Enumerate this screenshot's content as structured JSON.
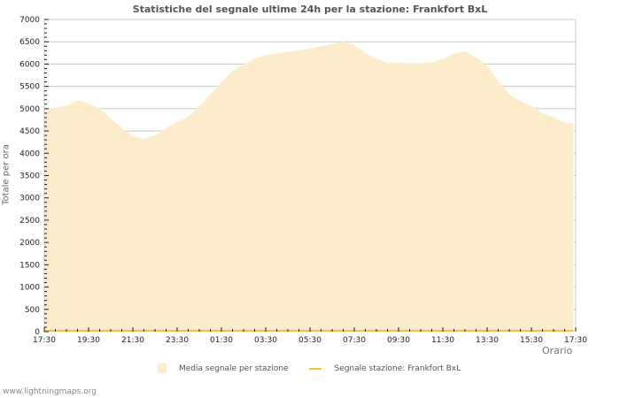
{
  "page": {
    "title": "Statistiche del segnale ultime 24h per la stazione: Frankfort BxL",
    "footer": "www.lightningmaps.org"
  },
  "colors": {
    "fill": "#fdeccb",
    "station_line": "#f5c23a",
    "grid": "#c8c8c8",
    "axis": "#cccccc"
  },
  "legend": {
    "items": [
      {
        "label": "Media segnale per stazione",
        "type": "area"
      },
      {
        "label": "Segnale stazione: Frankfort BxL",
        "type": "line"
      }
    ]
  },
  "chart_data": {
    "type": "area",
    "title": "Statistiche del segnale ultime 24h per la stazione: Frankfort BxL",
    "xlabel": "Orario",
    "ylabel": "Totale per ora",
    "ylim": [
      0,
      7000
    ],
    "yticks": [
      0,
      500,
      1000,
      1500,
      2000,
      2500,
      3000,
      3500,
      4000,
      4500,
      5000,
      5500,
      6000,
      6500,
      7000
    ],
    "xticks": [
      "17:30",
      "19:30",
      "21:30",
      "23:30",
      "01:30",
      "03:30",
      "05:30",
      "07:30",
      "09:30",
      "11:30",
      "13:30",
      "15:30",
      "17:30"
    ],
    "grid": true,
    "legend_position": "bottom",
    "x_hours_from_start": [
      0,
      0.5,
      1,
      1.5,
      2,
      2.5,
      3,
      3.5,
      4,
      4.5,
      5,
      5.5,
      6,
      6.5,
      7,
      7.5,
      8,
      8.5,
      9,
      9.5,
      10,
      10.5,
      11,
      11.5,
      12,
      12.5,
      13,
      13.5,
      14,
      14.5,
      15,
      15.5,
      16,
      16.5,
      17,
      17.5,
      18,
      18.5,
      19,
      19.5,
      20,
      20.5,
      21,
      21.5,
      22,
      22.5,
      23,
      23.5,
      23.9
    ],
    "series": [
      {
        "name": "Media segnale per stazione",
        "values": [
          5000,
          5020,
          5070,
          5180,
          5120,
          5000,
          4780,
          4560,
          4380,
          4320,
          4400,
          4560,
          4700,
          4820,
          5050,
          5320,
          5600,
          5850,
          5990,
          6120,
          6200,
          6240,
          6270,
          6310,
          6350,
          6400,
          6450,
          6510,
          6420,
          6250,
          6120,
          6030,
          6030,
          6020,
          6020,
          6040,
          6120,
          6240,
          6280,
          6150,
          5960,
          5620,
          5320,
          5170,
          5060,
          4900,
          4800,
          4690,
          4670
        ]
      },
      {
        "name": "Segnale stazione: Frankfort BxL",
        "values": [
          0,
          0,
          0,
          0,
          0,
          0,
          0,
          0,
          0,
          0,
          0,
          0,
          0,
          0,
          0,
          0,
          0,
          0,
          0,
          0,
          0,
          0,
          0,
          0,
          0,
          0,
          0,
          0,
          0,
          0,
          0,
          0,
          0,
          0,
          0,
          0,
          0,
          0,
          0,
          0,
          0,
          0,
          0,
          0,
          0,
          0,
          0,
          0,
          0
        ]
      }
    ]
  }
}
